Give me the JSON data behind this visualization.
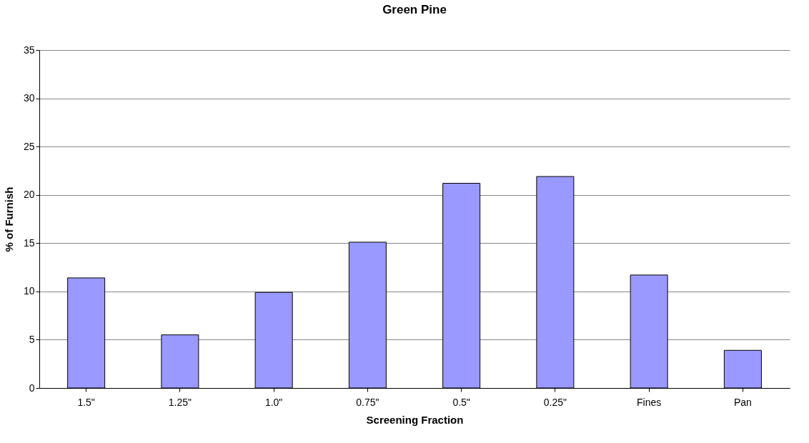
{
  "chart_data": {
    "type": "bar",
    "title": "Green Pine",
    "xlabel": "Screening Fraction",
    "ylabel": "% of Furnish",
    "categories": [
      "1.5\"",
      "1.25\"",
      "1.0\"",
      "0.75\"",
      "0.5\"",
      "0.25\"",
      "Fines",
      "Pan"
    ],
    "values": [
      11.4,
      5.5,
      9.9,
      15.1,
      21.2,
      21.9,
      11.7,
      3.9
    ],
    "color": "#9999ff",
    "ylim": [
      0,
      35
    ],
    "yticks": [
      0,
      5,
      10,
      15,
      20,
      25,
      30,
      35
    ],
    "grid": "y"
  }
}
